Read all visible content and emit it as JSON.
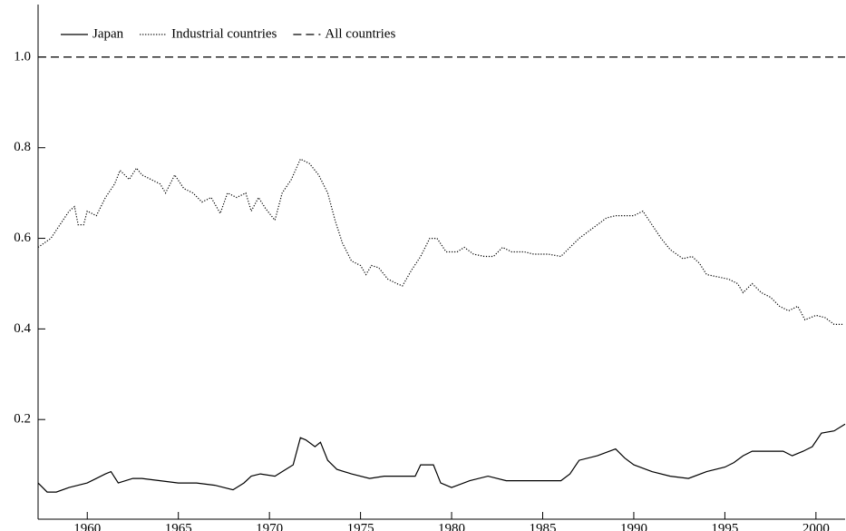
{
  "chart_data": {
    "type": "line",
    "xlim": [
      1957.3,
      2001.6
    ],
    "ylim": [
      -0.02,
      1.1
    ],
    "xticks": [
      1960,
      1965,
      1970,
      1975,
      1980,
      1985,
      1990,
      1995,
      2000
    ],
    "yticks": [
      {
        "value": 0.2,
        "label": "0.2"
      },
      {
        "value": 0.4,
        "label": "0.4"
      },
      {
        "value": 0.6,
        "label": "0.6"
      },
      {
        "value": 0.8,
        "label": "0.8"
      },
      {
        "value": 1.0,
        "label": "1.0"
      }
    ],
    "legend": "top-left",
    "series": [
      {
        "name": "Japan",
        "color": "#000000",
        "dash": "solid",
        "x": [
          1957.3,
          1957.8,
          1958.3,
          1959,
          1960,
          1960.5,
          1961,
          1961.3,
          1961.7,
          1962.5,
          1963,
          1964,
          1965,
          1966,
          1967,
          1968,
          1968.6,
          1969,
          1969.5,
          1970.3,
          1970.7,
          1971.3,
          1971.7,
          1972,
          1972.5,
          1972.8,
          1973.2,
          1973.7,
          1974.5,
          1975.5,
          1976.3,
          1977,
          1978,
          1978.3,
          1979,
          1979.4,
          1980,
          1981,
          1982,
          1983,
          1984,
          1985,
          1986,
          1986.5,
          1987,
          1988,
          1989,
          1989.5,
          1990,
          1991,
          1992,
          1993,
          1994,
          1995,
          1995.5,
          1996,
          1996.5,
          1997.5,
          1998.2,
          1998.7,
          1999.3,
          1999.8,
          2000.3,
          2001,
          2001.6
        ],
        "values": [
          0.06,
          0.04,
          0.04,
          0.05,
          0.06,
          0.07,
          0.08,
          0.085,
          0.06,
          0.07,
          0.07,
          0.065,
          0.06,
          0.06,
          0.055,
          0.045,
          0.06,
          0.075,
          0.08,
          0.075,
          0.085,
          0.1,
          0.16,
          0.155,
          0.14,
          0.15,
          0.11,
          0.09,
          0.08,
          0.07,
          0.075,
          0.075,
          0.075,
          0.1,
          0.1,
          0.06,
          0.05,
          0.065,
          0.075,
          0.065,
          0.065,
          0.065,
          0.065,
          0.08,
          0.11,
          0.12,
          0.135,
          0.115,
          0.1,
          0.085,
          0.075,
          0.07,
          0.085,
          0.095,
          0.105,
          0.12,
          0.13,
          0.13,
          0.13,
          0.12,
          0.13,
          0.14,
          0.17,
          0.175,
          0.19
        ]
      },
      {
        "name": "Industrial countries",
        "color": "#000000",
        "dash": "dotted",
        "x": [
          1957.3,
          1958,
          1958.5,
          1959,
          1959.3,
          1959.5,
          1959.8,
          1960,
          1960.5,
          1961,
          1961.5,
          1961.8,
          1962.3,
          1962.7,
          1963,
          1963.5,
          1964,
          1964.3,
          1964.8,
          1965.3,
          1965.8,
          1966.3,
          1966.8,
          1967.3,
          1967.7,
          1968.2,
          1968.7,
          1969,
          1969.4,
          1969.8,
          1970.3,
          1970.7,
          1971.2,
          1971.7,
          1972.2,
          1972.7,
          1973.2,
          1973.6,
          1974,
          1974.5,
          1975,
          1975.3,
          1975.6,
          1976,
          1976.5,
          1977,
          1977.3,
          1977.8,
          1978.3,
          1978.8,
          1979.2,
          1979.7,
          1980.3,
          1980.7,
          1981.2,
          1981.8,
          1982.3,
          1982.8,
          1983.3,
          1984,
          1984.5,
          1985.3,
          1986,
          1986.5,
          1987,
          1987.5,
          1988,
          1988.5,
          1989,
          1989.5,
          1990,
          1990.5,
          1991,
          1991.5,
          1992,
          1992.7,
          1993.2,
          1993.6,
          1994,
          1994.6,
          1995.2,
          1995.7,
          1996,
          1996.5,
          1997,
          1997.5,
          1998,
          1998.5,
          1999,
          1999.4,
          2000,
          2000.5,
          2001,
          2001.5
        ],
        "values": [
          0.58,
          0.6,
          0.63,
          0.66,
          0.67,
          0.63,
          0.63,
          0.66,
          0.65,
          0.69,
          0.72,
          0.75,
          0.73,
          0.755,
          0.74,
          0.73,
          0.72,
          0.7,
          0.74,
          0.71,
          0.7,
          0.68,
          0.69,
          0.655,
          0.7,
          0.69,
          0.7,
          0.66,
          0.69,
          0.665,
          0.64,
          0.7,
          0.73,
          0.775,
          0.765,
          0.74,
          0.7,
          0.64,
          0.59,
          0.55,
          0.54,
          0.52,
          0.54,
          0.535,
          0.51,
          0.5,
          0.495,
          0.53,
          0.56,
          0.6,
          0.6,
          0.57,
          0.57,
          0.58,
          0.565,
          0.56,
          0.56,
          0.58,
          0.57,
          0.57,
          0.565,
          0.565,
          0.56,
          0.58,
          0.6,
          0.615,
          0.63,
          0.645,
          0.65,
          0.65,
          0.65,
          0.66,
          0.63,
          0.6,
          0.575,
          0.555,
          0.56,
          0.545,
          0.52,
          0.515,
          0.51,
          0.5,
          0.48,
          0.5,
          0.48,
          0.47,
          0.45,
          0.44,
          0.45,
          0.42,
          0.43,
          0.425,
          0.41,
          0.41
        ]
      },
      {
        "name": "All countries",
        "color": "#000000",
        "dash": "dashed",
        "x": [
          1957.3,
          2001.6
        ],
        "values": [
          1.0,
          1.0
        ]
      }
    ]
  }
}
